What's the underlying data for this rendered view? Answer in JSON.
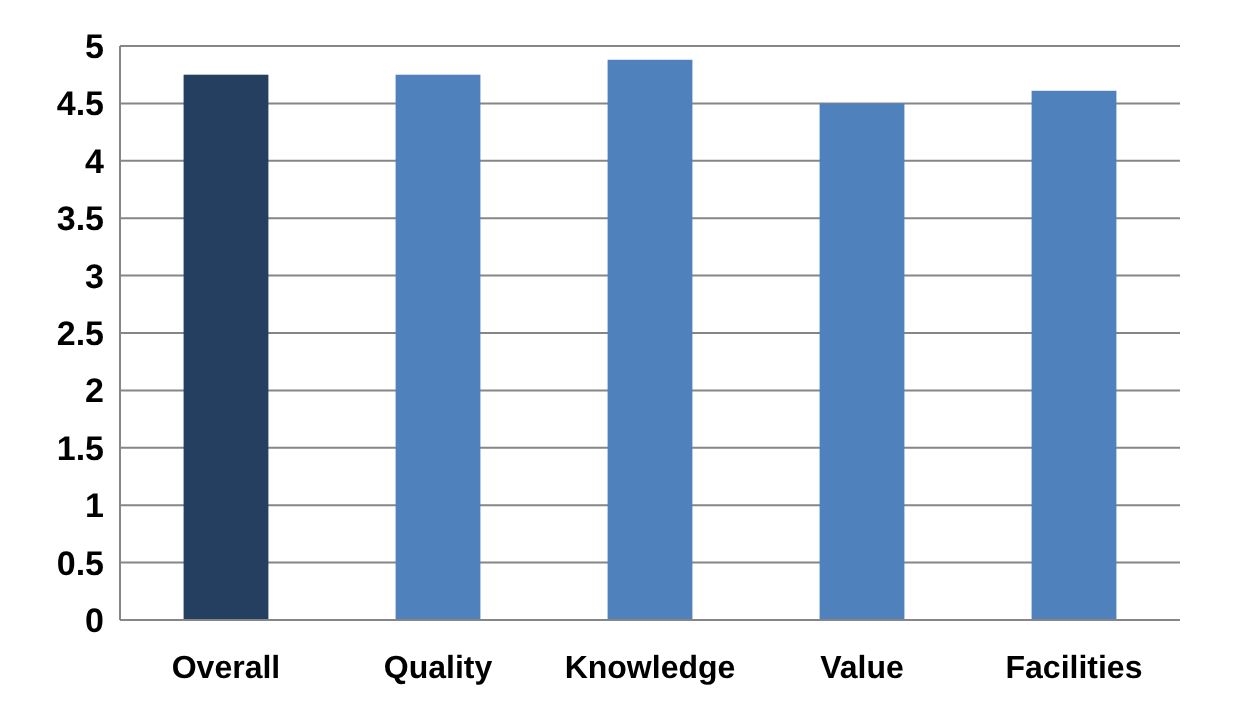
{
  "chart_data": {
    "type": "bar",
    "categories": [
      "Overall",
      "Quality",
      "Knowledge",
      "Value",
      "Facilities"
    ],
    "values": [
      4.75,
      4.75,
      4.88,
      4.5,
      4.61
    ],
    "colors": [
      "#243f60",
      "#4f81bd",
      "#4f81bd",
      "#4f81bd",
      "#4f81bd"
    ],
    "ylim": [
      0,
      5
    ],
    "yticks": [
      0,
      0.5,
      1,
      1.5,
      2,
      2.5,
      3,
      3.5,
      4,
      4.5,
      5
    ],
    "grid": "y"
  }
}
